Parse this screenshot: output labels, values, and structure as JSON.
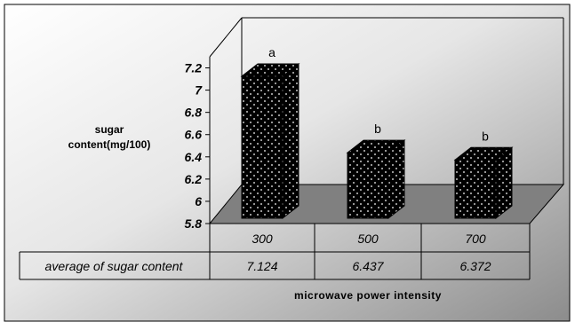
{
  "chart_data": {
    "type": "bar",
    "style": "3d",
    "categories": [
      "300",
      "500",
      "700"
    ],
    "values": [
      7.124,
      6.437,
      6.372
    ],
    "value_labels": [
      "7.124",
      "6.437",
      "6.372"
    ],
    "significance_letters": [
      "a",
      "b",
      "b"
    ],
    "ylabel_lines": [
      "sugar",
      "content(mg/100)"
    ],
    "xlabel": "microwave power intensity",
    "table_row_label": "average of sugar content",
    "yticks": [
      5.8,
      6,
      6.2,
      6.4,
      6.6,
      6.8,
      7,
      7.2
    ],
    "ylim": [
      5.8,
      7.3
    ],
    "grid": false,
    "colors": {
      "bar_front": "#000000",
      "bar_side": "#000000",
      "bar_dots": "#ffffff",
      "floor": "#808080",
      "background_gradient_start": "#ffffff",
      "background_gradient_end": "#8c8c8c"
    }
  }
}
